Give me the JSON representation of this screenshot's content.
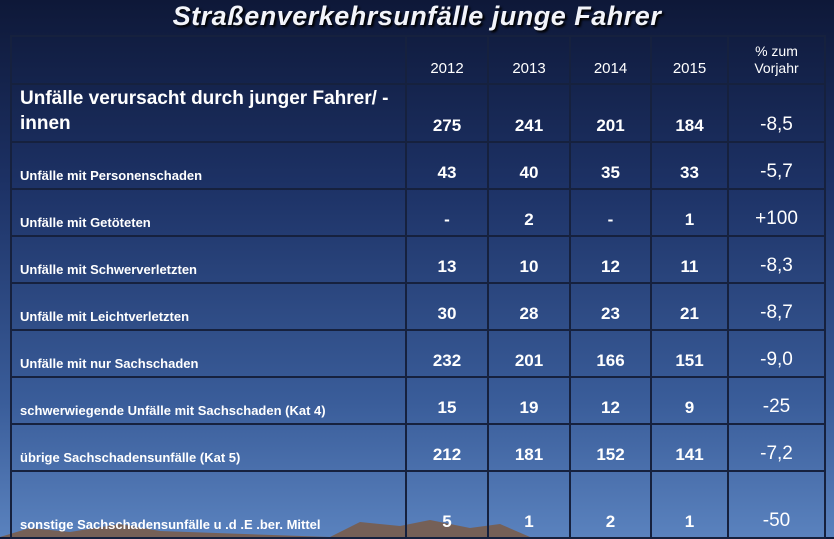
{
  "header": {
    "title": "Straßenverkehrsunfälle  junge Fahrer"
  },
  "table": {
    "columns": [
      "2012",
      "2013",
      "2014",
      "2015",
      "% zum Vorjahr"
    ],
    "rows": [
      [
        "Unfälle verursacht durch junger Fahrer/ -innen",
        "275",
        "241",
        "201",
        "184",
        "-8,5"
      ],
      [
        "Unfälle mit Personenschaden",
        "43",
        "40",
        "35",
        "33",
        "-5,7"
      ],
      [
        "Unfälle mit Getöteten",
        "-",
        "2",
        "-",
        "1",
        "+100"
      ],
      [
        "Unfälle mit Schwerverletzten",
        "13",
        "10",
        "12",
        "11",
        "-8,3"
      ],
      [
        "Unfälle mit Leichtverletzten",
        "30",
        "28",
        "23",
        "21",
        "-8,7"
      ],
      [
        "Unfälle mit nur Sachschaden",
        "232",
        "201",
        "166",
        "151",
        "-9,0"
      ],
      [
        "schwerwiegende Unfälle mit Sachschaden (Kat 4)",
        "15",
        "19",
        "12",
        "9",
        "-25"
      ],
      [
        "übrige Sachschadensunfälle (Kat 5)",
        "212",
        "181",
        "152",
        "141",
        "-7,2"
      ],
      [
        "sonstige Sachschadensunfälle u .d .E .ber. Mittel",
        "5",
        "1",
        "2",
        "1",
        "-50"
      ]
    ]
  }
}
